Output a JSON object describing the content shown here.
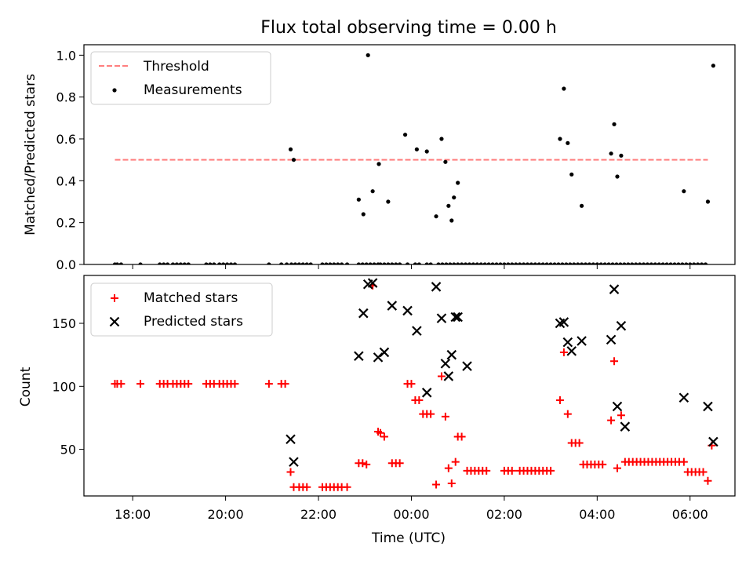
{
  "title": "Flux total observing time = 0.00 h",
  "chart_data": [
    {
      "type": "scatter",
      "ylabel": "Matched/Predicted stars",
      "ylim": [
        0,
        1.05
      ],
      "yticks": [
        "0.0",
        "0.2",
        "0.4",
        "0.6",
        "0.8",
        "1.0"
      ],
      "xlim": [
        "16:57",
        "06:58"
      ],
      "legend": {
        "placement": "top-left",
        "entries": [
          "Threshold",
          "Measurements"
        ]
      },
      "threshold": {
        "name": "Threshold",
        "value": 0.5,
        "x_start": "17:37",
        "x_end": "06:23",
        "color": "#ff7f7f",
        "style": "dashed"
      },
      "series": [
        {
          "name": "Measurements",
          "color": "#000000",
          "marker": "dot",
          "x": [
            "17:37",
            "17:40",
            "17:45",
            "18:10",
            "18:35",
            "18:40",
            "18:45",
            "18:52",
            "18:57",
            "19:02",
            "19:07",
            "19:12",
            "19:35",
            "19:40",
            "19:45",
            "19:52",
            "19:57",
            "20:02",
            "20:07",
            "20:12",
            "20:56",
            "21:12",
            "21:19",
            "21:25",
            "21:30",
            "21:35",
            "21:40",
            "21:45",
            "21:50",
            "22:05",
            "22:10",
            "22:15",
            "22:20",
            "22:25",
            "22:30",
            "22:37",
            "22:52",
            "22:57",
            "23:02",
            "23:07",
            "23:12",
            "23:17",
            "23:20",
            "23:25",
            "23:30",
            "23:35",
            "23:40",
            "23:45",
            "23:55",
            "24:05",
            "24:10",
            "24:20",
            "24:25",
            "24:35",
            "24:40",
            "24:45",
            "24:50",
            "24:55",
            "25:05",
            "25:10",
            "25:15",
            "25:20",
            "25:25",
            "25:30",
            "25:35",
            "25:40",
            "25:45",
            "25:50",
            "25:55",
            "25:00",
            "26:00",
            "26:05",
            "26:10",
            "26:15",
            "26:20",
            "26:25",
            "26:30",
            "26:35",
            "26:40",
            "26:45",
            "26:50",
            "26:55",
            "27:00",
            "27:05",
            "27:10",
            "27:15",
            "27:20",
            "27:25",
            "27:30",
            "27:35",
            "27:40",
            "27:45",
            "27:50",
            "27:55",
            "28:00",
            "28:05",
            "28:10",
            "28:15",
            "28:20",
            "28:25",
            "28:30",
            "28:35",
            "28:40",
            "28:45",
            "28:50",
            "28:55",
            "29:00",
            "29:05",
            "29:10",
            "29:15",
            "29:20",
            "29:25",
            "29:30",
            "29:35",
            "29:40",
            "29:45",
            "29:50",
            "29:55",
            "30:00",
            "30:05",
            "30:10",
            "30:15",
            "30:20",
            "21:24",
            "21:28",
            "22:52",
            "22:58",
            "23:04",
            "23:10",
            "23:18",
            "23:30",
            "23:52",
            "24:07",
            "24:20",
            "24:32",
            "24:39",
            "24:44",
            "24:48",
            "24:52",
            "24:55",
            "25:00",
            "27:12",
            "27:17",
            "27:22",
            "27:27",
            "27:40",
            "28:18",
            "28:22",
            "28:26",
            "28:31",
            "29:52",
            "30:23",
            "30:30"
          ],
          "y": [
            0,
            0,
            0,
            0,
            0,
            0,
            0,
            0,
            0,
            0,
            0,
            0,
            0,
            0,
            0,
            0,
            0,
            0,
            0,
            0,
            0,
            0,
            0,
            0,
            0,
            0,
            0,
            0,
            0,
            0,
            0,
            0,
            0,
            0,
            0,
            0,
            0,
            0,
            0,
            0,
            0,
            0,
            0,
            0,
            0,
            0,
            0,
            0,
            0,
            0,
            0,
            0,
            0,
            0,
            0,
            0,
            0,
            0,
            0,
            0,
            0,
            0,
            0,
            0,
            0,
            0,
            0,
            0,
            0,
            0,
            0,
            0,
            0,
            0,
            0,
            0,
            0,
            0,
            0,
            0,
            0,
            0,
            0,
            0,
            0,
            0,
            0,
            0,
            0,
            0,
            0,
            0,
            0,
            0,
            0,
            0,
            0,
            0,
            0,
            0,
            0,
            0,
            0,
            0,
            0,
            0,
            0,
            0,
            0,
            0,
            0,
            0,
            0,
            0,
            0,
            0,
            0,
            0,
            0,
            0,
            0,
            0,
            0,
            0.55,
            0.5,
            0.31,
            0.24,
            1.0,
            0.35,
            0.48,
            0.3,
            0.62,
            0.55,
            0.54,
            0.23,
            0.6,
            0.49,
            0.28,
            0.21,
            0.32,
            0.39,
            0.6,
            0.84,
            0.58,
            0.43,
            0.28,
            0.53,
            0.67,
            0.42,
            0.52,
            0.35,
            0.3,
            0.95
          ]
        }
      ]
    },
    {
      "type": "scatter",
      "xlabel": "Time (UTC)",
      "ylabel": "Count",
      "ylim": [
        13,
        188
      ],
      "yticks": [
        "50",
        "100",
        "150"
      ],
      "xticks": [
        "18:00",
        "20:00",
        "22:00",
        "00:00",
        "02:00",
        "04:00",
        "06:00"
      ],
      "xlim": [
        "16:57",
        "06:58"
      ],
      "legend": {
        "placement": "top-left",
        "entries": [
          "Matched stars",
          "Predicted stars"
        ]
      },
      "series": [
        {
          "name": "Matched stars",
          "color": "#ff0000",
          "marker": "plus",
          "x": [
            "17:37",
            "17:40",
            "17:45",
            "18:10",
            "18:35",
            "18:40",
            "18:45",
            "18:52",
            "18:57",
            "19:02",
            "19:07",
            "19:12",
            "19:35",
            "19:40",
            "19:45",
            "19:52",
            "19:57",
            "20:02",
            "20:07",
            "20:12",
            "20:56",
            "21:12",
            "21:17",
            "21:24",
            "21:28",
            "21:35",
            "21:40",
            "21:45",
            "22:05",
            "22:10",
            "22:15",
            "22:20",
            "22:25",
            "22:30",
            "22:37",
            "22:52",
            "22:57",
            "23:02",
            "23:10",
            "23:17",
            "23:20",
            "23:25",
            "23:35",
            "23:40",
            "23:45",
            "23:55",
            "24:00",
            "24:05",
            "24:10",
            "24:15",
            "24:20",
            "24:25",
            "24:32",
            "24:39",
            "24:44",
            "24:48",
            "24:52",
            "24:57",
            "25:00",
            "25:05",
            "25:12",
            "25:17",
            "25:22",
            "25:27",
            "25:32",
            "25:37",
            "26:00",
            "26:05",
            "26:10",
            "26:20",
            "26:25",
            "26:30",
            "26:35",
            "26:40",
            "26:45",
            "26:50",
            "26:55",
            "27:00",
            "27:12",
            "27:17",
            "27:22",
            "27:27",
            "27:32",
            "27:37",
            "27:42",
            "27:47",
            "27:52",
            "27:57",
            "28:02",
            "28:07",
            "28:18",
            "28:22",
            "28:26",
            "28:31",
            "28:36",
            "28:41",
            "28:46",
            "28:51",
            "28:56",
            "29:01",
            "29:06",
            "29:11",
            "29:16",
            "29:21",
            "29:26",
            "29:31",
            "29:36",
            "29:41",
            "29:46",
            "29:52",
            "29:57",
            "30:02",
            "30:07",
            "30:12",
            "30:17",
            "30:23",
            "30:28"
          ],
          "y": [
            102,
            102,
            102,
            102,
            102,
            102,
            102,
            102,
            102,
            102,
            102,
            102,
            102,
            102,
            102,
            102,
            102,
            102,
            102,
            102,
            102,
            102,
            102,
            32,
            20,
            20,
            20,
            20,
            20,
            20,
            20,
            20,
            20,
            20,
            20,
            39,
            39,
            38,
            180,
            64,
            63,
            60,
            39,
            39,
            39,
            102,
            102,
            89,
            89,
            78,
            78,
            78,
            22,
            108,
            76,
            35,
            23,
            40,
            60,
            60,
            33,
            33,
            33,
            33,
            33,
            33,
            33,
            33,
            33,
            33,
            33,
            33,
            33,
            33,
            33,
            33,
            33,
            33,
            89,
            127,
            78,
            55,
            55,
            55,
            38,
            38,
            38,
            38,
            38,
            38,
            73,
            120,
            35,
            77,
            40,
            40,
            40,
            40,
            40,
            40,
            40,
            40,
            40,
            40,
            40,
            40,
            40,
            40,
            40,
            40,
            32,
            32,
            32,
            32,
            32,
            25,
            53
          ]
        },
        {
          "name": "Predicted stars",
          "color": "#000000",
          "marker": "x",
          "x": [
            "21:24",
            "21:28",
            "22:52",
            "22:58",
            "23:04",
            "23:10",
            "23:17",
            "23:25",
            "23:35",
            "23:55",
            "24:07",
            "24:20",
            "24:32",
            "24:39",
            "24:44",
            "24:48",
            "24:52",
            "24:57",
            "25:00",
            "25:12",
            "27:12",
            "27:17",
            "27:22",
            "27:27",
            "27:40",
            "28:18",
            "28:22",
            "28:26",
            "28:31",
            "28:36",
            "29:52",
            "30:23",
            "30:30"
          ],
          "y": [
            58,
            40,
            124,
            158,
            181,
            182,
            123,
            127,
            164,
            160,
            144,
            95,
            179,
            154,
            118,
            108,
            125,
            155,
            155,
            116,
            150,
            151,
            135,
            128,
            136,
            137,
            177,
            84,
            148,
            68,
            91,
            84,
            56
          ]
        }
      ]
    }
  ]
}
